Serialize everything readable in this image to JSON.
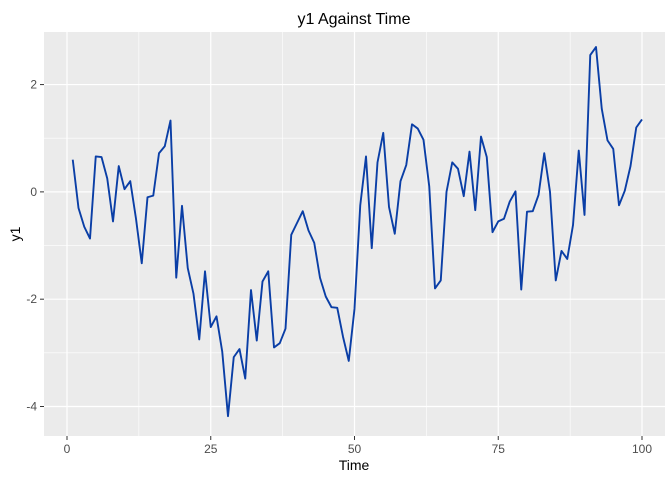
{
  "chart_data": {
    "type": "line",
    "title": "y1 Against Time",
    "xlabel": "Time",
    "ylabel": "y1",
    "xlim": [
      -4,
      104
    ],
    "ylim": [
      -4.55,
      2.98
    ],
    "x_ticks": [
      0,
      25,
      50,
      75,
      100
    ],
    "x_tick_labels": [
      "0",
      "25",
      "50",
      "75",
      "100"
    ],
    "y_ticks": [
      -4,
      -2,
      0,
      2
    ],
    "y_tick_labels": [
      "-4",
      "-2",
      "0",
      "2"
    ],
    "grid": true,
    "legend": "none",
    "colors": {
      "panel": "#ebebeb",
      "grid_major": "#ffffff",
      "line": "#0a3ea6",
      "tick": "#333333"
    },
    "series": [
      {
        "x": [
          1,
          2,
          3,
          4,
          5,
          6,
          7,
          8,
          9,
          10,
          11,
          12,
          13,
          14,
          15,
          16,
          17,
          18,
          19,
          20,
          21,
          22,
          23,
          24,
          25,
          26,
          27,
          28,
          29,
          30,
          31,
          32,
          33,
          34,
          35,
          36,
          37,
          38,
          39,
          40,
          41,
          42,
          43,
          44,
          45,
          46,
          47,
          48,
          49,
          50,
          51,
          52,
          53,
          54,
          55,
          56,
          57,
          58,
          59,
          60,
          61,
          62,
          63,
          64,
          65,
          66,
          67,
          68,
          69,
          70,
          71,
          72,
          73,
          74,
          75,
          76,
          77,
          78,
          79,
          80,
          81,
          82,
          83,
          84,
          85,
          86,
          87,
          88,
          89,
          90,
          91,
          92,
          93,
          94,
          95,
          96,
          97,
          98,
          99,
          100
        ],
        "values": [
          0.6,
          -0.3,
          -0.65,
          -0.87,
          0.66,
          0.65,
          0.25,
          -0.55,
          0.48,
          0.05,
          0.2,
          -0.5,
          -1.33,
          -0.1,
          -0.07,
          0.72,
          0.85,
          1.33,
          -1.6,
          -0.26,
          -1.42,
          -1.9,
          -2.75,
          -1.48,
          -2.52,
          -2.32,
          -2.98,
          -4.18,
          -3.08,
          -2.93,
          -3.48,
          -1.83,
          -2.77,
          -1.67,
          -1.48,
          -2.9,
          -2.82,
          -2.55,
          -0.8,
          -0.58,
          -0.36,
          -0.72,
          -0.95,
          -1.6,
          -1.95,
          -2.15,
          -2.16,
          -2.7,
          -3.15,
          -2.18,
          -0.25,
          0.66,
          -1.05,
          0.55,
          1.1,
          -0.28,
          -0.78,
          0.2,
          0.5,
          1.26,
          1.18,
          0.97,
          0.1,
          -1.8,
          -1.65,
          0.0,
          0.55,
          0.43,
          -0.08,
          0.75,
          -0.34,
          1.03,
          0.65,
          -0.75,
          -0.55,
          -0.5,
          -0.18,
          0.01,
          -1.82,
          -0.37,
          -0.36,
          -0.06,
          0.72,
          0.0,
          -1.65,
          -1.1,
          -1.25,
          -0.62,
          0.77,
          -0.43,
          2.55,
          2.7,
          1.55,
          0.96,
          0.8,
          -0.25,
          0.02,
          0.48,
          1.2,
          1.35
        ]
      }
    ]
  }
}
